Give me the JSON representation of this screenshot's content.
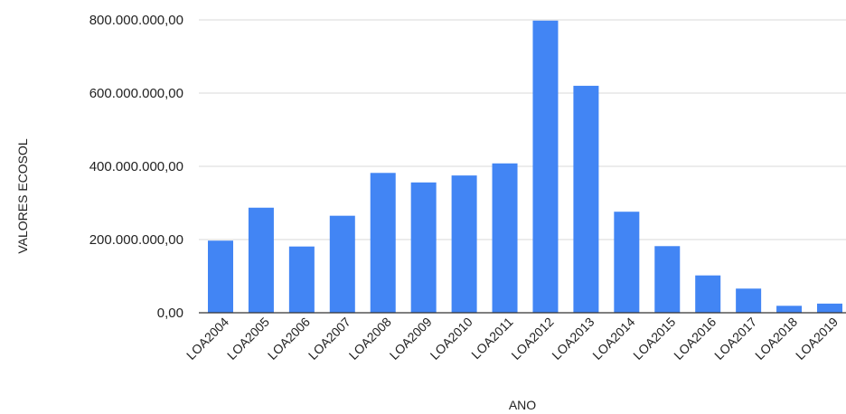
{
  "chart_data": {
    "type": "bar",
    "categories": [
      "LOA2004",
      "LOA2005",
      "LOA2006",
      "LOA2007",
      "LOA2008",
      "LOA2009",
      "LOA2010",
      "LOA2011",
      "LOA2012",
      "LOA2013",
      "LOA2014",
      "LOA2015",
      "LOA2016",
      "LOA2017",
      "LOA2018",
      "LOA2019"
    ],
    "series": [
      {
        "values": [
          197000000,
          287000000,
          181000000,
          265000000,
          382000000,
          356000000,
          375000000,
          408000000,
          798000000,
          620000000,
          276000000,
          182000000,
          102000000,
          66000000,
          19000000,
          25000000
        ],
        "color": "#4285f4"
      }
    ],
    "title": "",
    "xlabel": "ANO",
    "ylabel": "VALORES ECOSOL",
    "ylim": [
      0,
      800000000
    ],
    "yticks": [
      0,
      200000000,
      400000000,
      600000000,
      800000000
    ],
    "ytick_labels": [
      "0,00",
      "200.000.000,00",
      "400.000.000,00",
      "600.000.000,00",
      "800.000.000,00"
    ],
    "grid": true,
    "legend": "none"
  }
}
